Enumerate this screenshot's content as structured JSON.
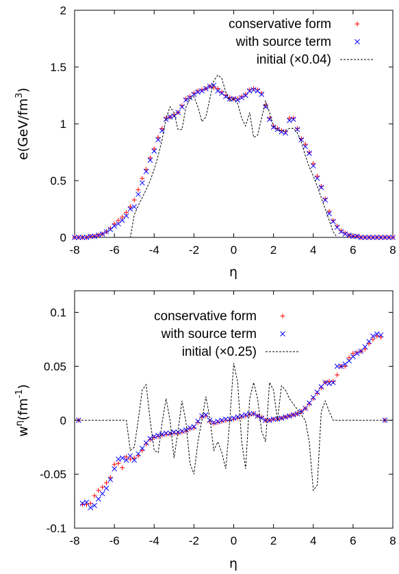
{
  "chart_data": [
    {
      "type": "scatter",
      "xlabel": "η",
      "ylabel": {
        "base": "e(GeV/fm",
        "sup": "3",
        "tail": ")"
      },
      "xlim": [
        -8,
        8
      ],
      "ylim": [
        0,
        2
      ],
      "xticks": [
        "-8",
        "-6",
        "-4",
        "-2",
        "0",
        "2",
        "4",
        "6",
        "8"
      ],
      "yticks": [
        "0",
        "0.5",
        "1",
        "1.5",
        "2"
      ],
      "legend_position": "top-right",
      "grid": false,
      "series": [
        {
          "name": "conservative form",
          "marker": "plus",
          "color": "#ff0000",
          "x": [
            -8.0,
            -7.8,
            -7.6,
            -7.4,
            -7.2,
            -7.0,
            -6.8,
            -6.6,
            -6.4,
            -6.2,
            -6.0,
            -5.8,
            -5.6,
            -5.4,
            -5.2,
            -5.0,
            -4.8,
            -4.6,
            -4.4,
            -4.2,
            -4.0,
            -3.8,
            -3.6,
            -3.4,
            -3.2,
            -3.0,
            -2.8,
            -2.6,
            -2.4,
            -2.2,
            -2.0,
            -1.8,
            -1.6,
            -1.4,
            -1.2,
            -1.0,
            -0.8,
            -0.6,
            -0.4,
            -0.2,
            0.0,
            0.2,
            0.4,
            0.6,
            0.8,
            1.0,
            1.2,
            1.4,
            1.6,
            1.8,
            2.0,
            2.2,
            2.4,
            2.6,
            2.8,
            3.0,
            3.2,
            3.4,
            3.6,
            3.8,
            4.0,
            4.2,
            4.4,
            4.6,
            4.8,
            5.0,
            5.2,
            5.4,
            5.6,
            5.8,
            6.0,
            6.2,
            6.4,
            6.6,
            6.8,
            7.0,
            7.2,
            7.4,
            7.6,
            7.8,
            8.0
          ],
          "y": [
            0.0,
            0.0,
            0.0,
            0.0,
            0.01,
            0.01,
            0.02,
            0.03,
            0.05,
            0.08,
            0.12,
            0.15,
            0.18,
            0.22,
            0.27,
            0.33,
            0.42,
            0.52,
            0.6,
            0.7,
            0.78,
            0.88,
            0.96,
            1.05,
            1.06,
            1.08,
            1.1,
            1.16,
            1.22,
            1.24,
            1.27,
            1.29,
            1.3,
            1.31,
            1.33,
            1.32,
            1.31,
            1.28,
            1.25,
            1.23,
            1.22,
            1.22,
            1.24,
            1.26,
            1.3,
            1.31,
            1.3,
            1.27,
            1.16,
            1.05,
            0.98,
            0.96,
            0.94,
            0.93,
            1.05,
            1.05,
            0.96,
            0.87,
            0.82,
            0.75,
            0.65,
            0.54,
            0.45,
            0.34,
            0.23,
            0.15,
            0.1,
            0.06,
            0.04,
            0.02,
            0.01,
            0.01,
            0.0,
            0.0,
            0.0,
            0.0,
            0.0,
            0.0,
            0.0,
            0.0,
            0.0
          ]
        },
        {
          "name": "with source term",
          "marker": "cross",
          "color": "#0000ff",
          "x": [
            -8.0,
            -7.8,
            -7.6,
            -7.4,
            -7.2,
            -7.0,
            -6.8,
            -6.6,
            -6.4,
            -6.2,
            -6.0,
            -5.8,
            -5.6,
            -5.4,
            -5.2,
            -5.0,
            -4.8,
            -4.6,
            -4.4,
            -4.2,
            -4.0,
            -3.8,
            -3.6,
            -3.4,
            -3.2,
            -3.0,
            -2.8,
            -2.6,
            -2.4,
            -2.2,
            -2.0,
            -1.8,
            -1.6,
            -1.4,
            -1.2,
            -1.0,
            -0.8,
            -0.6,
            -0.4,
            -0.2,
            0.0,
            0.2,
            0.4,
            0.6,
            0.8,
            1.0,
            1.2,
            1.4,
            1.6,
            1.8,
            2.0,
            2.2,
            2.4,
            2.6,
            2.8,
            3.0,
            3.2,
            3.4,
            3.6,
            3.8,
            4.0,
            4.2,
            4.4,
            4.6,
            4.8,
            5.0,
            5.2,
            5.4,
            5.6,
            5.8,
            6.0,
            6.2,
            6.4,
            6.6,
            6.8,
            7.0,
            7.2,
            7.4,
            7.6,
            7.8,
            8.0
          ],
          "y": [
            0.0,
            0.0,
            0.0,
            0.0,
            0.01,
            0.01,
            0.02,
            0.03,
            0.05,
            0.07,
            0.1,
            0.12,
            0.15,
            0.19,
            0.25,
            0.27,
            0.38,
            0.48,
            0.58,
            0.68,
            0.76,
            0.86,
            0.94,
            1.04,
            1.06,
            1.07,
            1.1,
            1.15,
            1.21,
            1.23,
            1.26,
            1.28,
            1.29,
            1.31,
            1.33,
            1.34,
            1.29,
            1.27,
            1.24,
            1.22,
            1.22,
            1.21,
            1.23,
            1.25,
            1.29,
            1.3,
            1.29,
            1.26,
            1.15,
            1.04,
            0.97,
            0.95,
            0.93,
            0.92,
            1.03,
            1.04,
            0.95,
            0.86,
            0.8,
            0.74,
            0.63,
            0.52,
            0.44,
            0.33,
            0.21,
            0.14,
            0.09,
            0.05,
            0.03,
            0.02,
            0.01,
            0.01,
            0.0,
            0.0,
            0.0,
            0.0,
            0.0,
            0.0,
            0.0,
            0.0,
            0.0
          ]
        },
        {
          "name": "initial (×0.04)",
          "type": "line",
          "style": "dashed",
          "color": "#000000",
          "x": [
            -5.4,
            -5.2,
            -5.0,
            -4.8,
            -4.6,
            -4.4,
            -4.2,
            -4.0,
            -3.8,
            -3.6,
            -3.4,
            -3.2,
            -3.0,
            -2.8,
            -2.6,
            -2.4,
            -2.2,
            -2.0,
            -1.8,
            -1.6,
            -1.4,
            -1.2,
            -1.0,
            -0.8,
            -0.6,
            -0.4,
            -0.2,
            0.0,
            0.2,
            0.4,
            0.6,
            0.8,
            1.0,
            1.2,
            1.4,
            1.6,
            1.8,
            2.0,
            2.2,
            2.4,
            2.6,
            2.8,
            3.0,
            3.2,
            3.4,
            3.6,
            3.8,
            4.0,
            4.2,
            4.4,
            4.6,
            4.8,
            5.0,
            5.2,
            5.4
          ],
          "y": [
            0.0,
            0.0,
            0.2,
            0.28,
            0.35,
            0.42,
            0.5,
            0.6,
            0.72,
            0.86,
            1.05,
            1.15,
            1.1,
            0.95,
            0.95,
            1.15,
            1.22,
            1.24,
            1.15,
            1.02,
            1.06,
            1.22,
            1.38,
            1.43,
            1.4,
            1.28,
            1.2,
            1.22,
            1.18,
            1.05,
            0.98,
            1.1,
            0.88,
            0.9,
            1.05,
            1.2,
            1.1,
            0.98,
            0.95,
            0.94,
            0.94,
            0.96,
            0.96,
            0.92,
            0.84,
            0.72,
            0.62,
            0.54,
            0.45,
            0.35,
            0.25,
            0.15,
            0.05,
            0.0,
            0.0
          ]
        }
      ]
    },
    {
      "type": "scatter",
      "xlabel": "η",
      "ylabel": {
        "base": "w",
        "sup": "η",
        "mid": "(fm",
        "sup2": "-1",
        "tail": ")"
      },
      "xlim": [
        -8,
        8
      ],
      "ylim": [
        -0.1,
        0.12
      ],
      "xticks": [
        "-8",
        "-6",
        "-4",
        "-2",
        "0",
        "2",
        "4",
        "6",
        "8"
      ],
      "yticks": [
        "-0.1",
        "-0.05",
        "0",
        "0.05",
        "0.1"
      ],
      "ytick_values": [
        -0.1,
        -0.05,
        0,
        0.05,
        0.1
      ],
      "legend_position": "top-left",
      "grid": false,
      "series": [
        {
          "name": "conservative form",
          "marker": "plus",
          "color": "#ff0000",
          "x": [
            -7.8,
            -7.6,
            -7.4,
            -7.2,
            -7.0,
            -6.8,
            -6.6,
            -6.4,
            -6.2,
            -6.0,
            -5.8,
            -5.6,
            -5.4,
            -5.2,
            -5.0,
            -4.8,
            -4.6,
            -4.4,
            -4.2,
            -4.0,
            -3.8,
            -3.6,
            -3.4,
            -3.2,
            -3.0,
            -2.8,
            -2.6,
            -2.4,
            -2.2,
            -2.0,
            -1.8,
            -1.6,
            -1.4,
            -1.2,
            -1.0,
            -0.8,
            -0.6,
            -0.4,
            -0.2,
            0.0,
            0.2,
            0.4,
            0.6,
            0.8,
            1.0,
            1.2,
            1.4,
            1.6,
            1.8,
            2.0,
            2.2,
            2.4,
            2.6,
            2.8,
            3.0,
            3.2,
            3.4,
            3.6,
            3.8,
            4.0,
            4.2,
            4.4,
            4.6,
            4.8,
            5.0,
            5.2,
            5.4,
            5.6,
            5.8,
            6.0,
            6.2,
            6.4,
            6.6,
            6.8,
            7.0,
            7.2,
            7.4,
            7.6
          ],
          "y": [
            0.0,
            -0.078,
            -0.078,
            -0.077,
            -0.07,
            -0.065,
            -0.062,
            -0.058,
            -0.053,
            -0.041,
            -0.04,
            -0.044,
            -0.034,
            -0.036,
            -0.035,
            -0.033,
            -0.028,
            -0.022,
            -0.018,
            -0.016,
            -0.015,
            -0.014,
            -0.013,
            -0.013,
            -0.012,
            -0.012,
            -0.011,
            -0.01,
            -0.008,
            -0.007,
            -0.002,
            0.003,
            0.004,
            -0.001,
            -0.003,
            -0.002,
            -0.001,
            0.0,
            0.0,
            0.001,
            0.002,
            0.003,
            0.004,
            0.005,
            0.006,
            0.004,
            0.003,
            0.0,
            0.0,
            0.001,
            0.001,
            0.002,
            0.003,
            0.004,
            0.005,
            0.006,
            0.008,
            0.011,
            0.015,
            0.02,
            0.025,
            0.03,
            0.035,
            0.036,
            0.036,
            0.042,
            0.05,
            0.05,
            0.058,
            0.062,
            0.063,
            0.064,
            0.066,
            0.071,
            0.075,
            0.078,
            0.077,
            0.0
          ]
        },
        {
          "name": "with source term",
          "marker": "cross",
          "color": "#0000ff",
          "x": [
            -7.8,
            -7.6,
            -7.4,
            -7.2,
            -7.0,
            -6.8,
            -6.6,
            -6.4,
            -6.2,
            -6.0,
            -5.8,
            -5.6,
            -5.4,
            -5.2,
            -5.0,
            -4.8,
            -4.6,
            -4.4,
            -4.2,
            -4.0,
            -3.8,
            -3.6,
            -3.4,
            -3.2,
            -3.0,
            -2.8,
            -2.6,
            -2.4,
            -2.2,
            -2.0,
            -1.8,
            -1.6,
            -1.4,
            -1.2,
            -1.0,
            -0.8,
            -0.6,
            -0.4,
            -0.2,
            0.0,
            0.2,
            0.4,
            0.6,
            0.8,
            1.0,
            1.2,
            1.4,
            1.6,
            1.8,
            2.0,
            2.2,
            2.4,
            2.6,
            2.8,
            3.0,
            3.2,
            3.4,
            3.6,
            3.8,
            4.0,
            4.2,
            4.4,
            4.6,
            4.8,
            5.0,
            5.2,
            5.4,
            5.6,
            5.8,
            6.0,
            6.2,
            6.4,
            6.6,
            6.8,
            7.0,
            7.2,
            7.4,
            7.6
          ],
          "y": [
            0.0,
            -0.077,
            -0.076,
            -0.081,
            -0.079,
            -0.073,
            -0.068,
            -0.063,
            -0.055,
            -0.045,
            -0.036,
            -0.035,
            -0.037,
            -0.033,
            -0.037,
            -0.031,
            -0.026,
            -0.021,
            -0.017,
            -0.015,
            -0.014,
            -0.013,
            -0.012,
            -0.012,
            -0.011,
            -0.011,
            -0.01,
            -0.009,
            -0.007,
            -0.006,
            -0.001,
            0.004,
            0.005,
            0.0,
            -0.002,
            -0.001,
            0.0,
            0.001,
            0.001,
            0.002,
            0.003,
            0.004,
            0.005,
            0.006,
            0.006,
            0.004,
            0.002,
            0.0,
            0.0,
            0.001,
            0.001,
            0.002,
            0.003,
            0.004,
            0.005,
            0.006,
            0.008,
            0.011,
            0.016,
            0.021,
            0.026,
            0.031,
            0.035,
            0.034,
            0.035,
            0.05,
            0.05,
            0.052,
            0.055,
            0.059,
            0.062,
            0.064,
            0.068,
            0.073,
            0.078,
            0.08,
            0.079,
            0.0
          ]
        },
        {
          "name": "initial (×0.25)",
          "type": "line",
          "style": "dashed",
          "color": "#000000",
          "x": [
            -8.0,
            -7.0,
            -6.0,
            -5.4,
            -5.2,
            -5.0,
            -4.8,
            -4.6,
            -4.4,
            -4.2,
            -4.0,
            -3.8,
            -3.6,
            -3.4,
            -3.2,
            -3.0,
            -2.8,
            -2.6,
            -2.4,
            -2.2,
            -2.0,
            -1.8,
            -1.6,
            -1.4,
            -1.2,
            -1.0,
            -0.8,
            -0.6,
            -0.4,
            -0.2,
            0.0,
            0.2,
            0.4,
            0.6,
            0.8,
            1.0,
            1.2,
            1.4,
            1.6,
            1.8,
            2.0,
            2.2,
            2.4,
            2.6,
            2.8,
            3.0,
            3.2,
            3.4,
            3.6,
            3.8,
            4.0,
            4.2,
            4.4,
            4.6,
            4.8,
            5.0,
            5.2,
            6.0,
            7.0,
            8.0
          ],
          "y": [
            0.0,
            0.0,
            0.0,
            0.0,
            -0.028,
            -0.025,
            0.0,
            0.028,
            0.033,
            0.0,
            -0.028,
            -0.03,
            -0.002,
            0.02,
            0.0,
            -0.035,
            -0.01,
            0.018,
            -0.002,
            -0.04,
            -0.05,
            -0.02,
            0.0,
            0.022,
            0.002,
            -0.028,
            -0.02,
            -0.03,
            -0.045,
            0.0,
            0.053,
            0.035,
            -0.02,
            -0.045,
            0.02,
            0.035,
            0.02,
            -0.01,
            -0.02,
            0.035,
            0.028,
            0.0,
            0.032,
            0.028,
            0.02,
            0.015,
            0.01,
            0.005,
            0.0,
            -0.02,
            -0.065,
            -0.06,
            0.008,
            0.018,
            0.008,
            0.0,
            0.0,
            0.0,
            0.0,
            0.0
          ]
        }
      ]
    }
  ]
}
